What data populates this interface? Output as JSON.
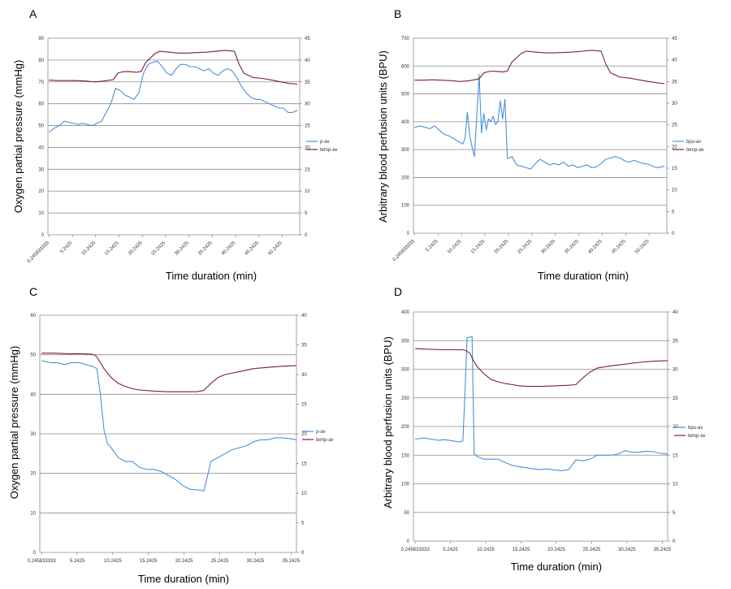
{
  "chart_data": [
    {
      "panel": "A",
      "type": "line",
      "xlabel": "Time duration (min)",
      "ylabel": "Oxygen partial pressure (mmHg)",
      "x_tick_labels": [
        "0.245833333",
        "5.2425",
        "10.2425",
        "15.2425",
        "20.2425",
        "25.2425",
        "30.2425",
        "35.2425",
        "40.2425",
        "45.2425",
        "50.2425"
      ],
      "ylim_left": [
        0,
        90
      ],
      "y_ticks_left": [
        "0",
        "10",
        "20",
        "30",
        "40",
        "50",
        "60",
        "70",
        "80",
        "90"
      ],
      "ylim_right": [
        0,
        45
      ],
      "y_ticks_right": [
        "0",
        "5",
        "10",
        "15",
        "20",
        "25",
        "30",
        "35",
        "40",
        "45"
      ],
      "grid": true,
      "legend": "right",
      "series": [
        {
          "name": "p-av",
          "axis": "left",
          "color": "#4a90d9",
          "x": [
            0.25,
            1.5,
            2.5,
            3.5,
            4.5,
            5.5,
            6.5,
            7.5,
            8.5,
            9.5,
            10.5,
            11.5,
            12.5,
            13.5,
            14.5,
            15.5,
            16.5,
            17.5,
            18.5,
            19.5,
            20.5,
            21.5,
            22.5,
            23.5,
            24.5,
            25.5,
            26.5,
            27.5,
            28.5,
            29.5,
            30.5,
            31.5,
            32.5,
            33.5,
            34.5,
            35.5,
            36.5,
            37.5,
            38.5,
            39.5,
            40.5,
            41.5,
            42.5,
            43.5,
            44.5,
            45.5,
            46.5,
            47.5,
            48.5,
            49.5,
            50.5,
            51.5,
            52.5,
            53.5
          ],
          "y": [
            47,
            49,
            50,
            52,
            51.5,
            51,
            50.5,
            51,
            50.5,
            50,
            51,
            52,
            56,
            60,
            67,
            66,
            64,
            63,
            62,
            65,
            74,
            78,
            79,
            79.5,
            77,
            74,
            73,
            76,
            78,
            78,
            77,
            77,
            76,
            75,
            76,
            74,
            73,
            75,
            76,
            75,
            72,
            68,
            65,
            63,
            62,
            62,
            61,
            60,
            59,
            58,
            58,
            56,
            56,
            57
          ]
        },
        {
          "name": "temp-av",
          "axis": "right",
          "color": "#7a1f3a",
          "x": [
            0.25,
            2,
            4,
            6,
            8,
            10,
            12,
            14,
            15,
            16,
            17,
            18,
            19,
            20,
            21,
            22,
            23,
            24,
            26,
            28,
            30,
            32,
            34,
            36,
            38,
            40,
            41,
            42,
            43,
            44,
            46,
            48,
            50,
            52,
            53.5
          ],
          "y": [
            35.4,
            35.3,
            35.3,
            35.3,
            35.2,
            35.0,
            35.2,
            35.5,
            37,
            37.3,
            37.4,
            37.3,
            37.2,
            37.4,
            39.5,
            40.5,
            41.5,
            42,
            41.8,
            41.6,
            41.6,
            41.7,
            41.8,
            42,
            42.2,
            42,
            39,
            37,
            36.5,
            36,
            35.8,
            35.4,
            35,
            34.6,
            34.5
          ]
        }
      ]
    },
    {
      "panel": "B",
      "type": "line",
      "xlabel": "Time duration (min)",
      "ylabel": "Arbitrary blood perfusion units (BPU)",
      "x_tick_labels": [
        "0.245833333",
        "5.2425",
        "10.2425",
        "15.2425",
        "20.2425",
        "25.2425",
        "30.2425",
        "35.2425",
        "40.2425",
        "45.2425",
        "50.2425"
      ],
      "ylim_left": [
        0,
        700
      ],
      "y_ticks_left": [
        "0",
        "100",
        "200",
        "300",
        "400",
        "500",
        "600",
        "700"
      ],
      "ylim_right": [
        0,
        45
      ],
      "y_ticks_right": [
        "0",
        "5",
        "10",
        "15",
        "20",
        "25",
        "30",
        "35",
        "40",
        "45"
      ],
      "grid": true,
      "legend": "right",
      "series": [
        {
          "name": "bpu-av",
          "axis": "left",
          "color": "#4a90d9",
          "x": [
            0.25,
            1.5,
            2.5,
            3.5,
            4.5,
            5.5,
            6.5,
            7.5,
            8.5,
            9.5,
            10.5,
            11,
            11.5,
            12,
            12.5,
            13,
            13.5,
            14,
            14.5,
            15,
            15.5,
            16,
            16.5,
            17,
            17.5,
            18,
            18.5,
            19,
            19.5,
            20,
            20.5,
            21,
            22,
            23,
            24,
            25,
            26,
            27,
            28,
            29,
            30,
            31,
            32,
            33,
            34,
            35,
            36,
            37,
            38,
            39,
            40,
            41,
            42,
            43,
            44,
            45,
            46,
            47,
            48,
            49,
            50,
            51,
            52,
            53.5
          ],
          "y": [
            380,
            385,
            380,
            375,
            385,
            370,
            355,
            350,
            340,
            330,
            320,
            340,
            435,
            350,
            310,
            275,
            420,
            570,
            360,
            430,
            370,
            410,
            400,
            420,
            390,
            400,
            475,
            410,
            480,
            270,
            270,
            275,
            245,
            240,
            235,
            230,
            250,
            265,
            255,
            245,
            250,
            245,
            255,
            240,
            245,
            235,
            240,
            245,
            235,
            238,
            250,
            265,
            270,
            275,
            270,
            260,
            255,
            262,
            255,
            250,
            248,
            240,
            235,
            240
          ]
        },
        {
          "name": "temp-av",
          "axis": "right",
          "color": "#7a1f3a",
          "x": [
            0.25,
            2,
            4,
            6,
            8,
            10,
            12,
            14,
            15,
            16,
            17,
            18,
            19,
            20,
            21,
            22,
            23,
            24,
            26,
            28,
            30,
            32,
            34,
            36,
            38,
            40,
            41,
            42,
            43,
            44,
            46,
            48,
            50,
            52,
            53.5
          ],
          "y": [
            35.3,
            35.3,
            35.4,
            35.3,
            35.2,
            35.0,
            35.2,
            35.6,
            37,
            37.3,
            37.4,
            37.3,
            37.2,
            37.4,
            39.5,
            40.5,
            41.5,
            42,
            41.8,
            41.6,
            41.6,
            41.7,
            41.8,
            42,
            42.2,
            42,
            39,
            37,
            36.5,
            36,
            35.8,
            35.4,
            35,
            34.7,
            34.5
          ]
        }
      ]
    },
    {
      "panel": "C",
      "type": "line",
      "xlabel": "Time duration (min)",
      "ylabel": "Oxygen partial pressure (mmHg)",
      "x_tick_labels": [
        "0.245833333",
        "5.2425",
        "10.2425",
        "15.2425",
        "20.2425",
        "25.2425",
        "30.2425",
        "35.2425"
      ],
      "ylim_left": [
        0,
        60
      ],
      "y_ticks_left": [
        "0",
        "10",
        "20",
        "30",
        "40",
        "50",
        "60"
      ],
      "ylim_right": [
        0,
        40
      ],
      "y_ticks_right": [
        "0",
        "5",
        "10",
        "15",
        "20",
        "25",
        "30",
        "35",
        "40"
      ],
      "grid": true,
      "legend": "right",
      "series": [
        {
          "name": "p-av",
          "axis": "left",
          "color": "#4a90d9",
          "x": [
            0.25,
            1.5,
            2.5,
            3.5,
            4.5,
            5.5,
            6.5,
            7.5,
            8,
            8.5,
            9,
            9.5,
            10,
            11,
            12,
            13,
            14,
            15,
            16,
            17,
            18,
            19,
            20,
            21,
            22,
            22.5,
            23,
            24,
            25,
            26,
            27,
            28,
            29,
            30,
            31,
            32,
            33,
            34,
            35,
            36
          ],
          "y": [
            48.5,
            48,
            48,
            47.5,
            48,
            48,
            47.5,
            47,
            46.5,
            40,
            31,
            27.5,
            26.5,
            24,
            23,
            23,
            21.5,
            21,
            21,
            20.5,
            19.5,
            18.5,
            17,
            16,
            15.8,
            15.8,
            15.5,
            23,
            24,
            25,
            26,
            26.5,
            27,
            28,
            28.5,
            28.5,
            29,
            29,
            28.8,
            28.5
          ]
        },
        {
          "name": "temp-av",
          "axis": "right",
          "color": "#7a1f3a",
          "x": [
            0.25,
            2,
            4,
            6,
            7.5,
            8,
            9,
            10,
            11,
            12,
            13,
            14,
            16,
            18,
            20,
            22,
            22.5,
            23,
            24,
            25,
            26,
            28,
            30,
            32,
            34,
            36
          ],
          "y": [
            33.6,
            33.6,
            33.5,
            33.5,
            33.4,
            33,
            31,
            29.5,
            28.5,
            28,
            27.6,
            27.4,
            27.2,
            27.1,
            27.1,
            27.1,
            27.2,
            27.3,
            28.5,
            29.5,
            30,
            30.5,
            31,
            31.2,
            31.4,
            31.5
          ]
        }
      ]
    },
    {
      "panel": "D",
      "type": "line",
      "xlabel": "Time duration (min)",
      "ylabel": "Arbitrary blood perfusion units (BPU)",
      "x_tick_labels": [
        "0.245833333",
        "5.2425",
        "10.2425",
        "15.2425",
        "20.2425",
        "25.2425",
        "30.2425",
        "35.2425"
      ],
      "ylim_left": [
        0,
        400
      ],
      "y_ticks_left": [
        "0",
        "50",
        "100",
        "150",
        "200",
        "250",
        "300",
        "350",
        "400"
      ],
      "ylim_right": [
        0,
        40
      ],
      "y_ticks_right": [
        "0",
        "5",
        "10",
        "15",
        "20",
        "25",
        "30",
        "35",
        "40"
      ],
      "grid": true,
      "legend": "right",
      "series": [
        {
          "name": "bpu-av",
          "axis": "left",
          "color": "#4a90d9",
          "x": [
            0.25,
            1.5,
            2.5,
            3.5,
            4.5,
            5.5,
            6.5,
            7,
            7.3,
            7.6,
            8,
            8.3,
            8.6,
            9,
            10,
            11,
            12,
            13,
            14,
            15,
            16,
            17,
            18,
            19,
            20,
            21,
            22,
            23,
            24,
            25,
            26,
            27,
            28,
            29,
            30,
            31,
            32,
            33,
            34,
            35,
            36
          ],
          "y": [
            178,
            180,
            178,
            176,
            177,
            175,
            173,
            175,
            260,
            355,
            356,
            357,
            152,
            148,
            143,
            143,
            143,
            137,
            132,
            130,
            128,
            126,
            125,
            126,
            124,
            123,
            125,
            142,
            140,
            143,
            150,
            150,
            150,
            152,
            158,
            155,
            155,
            157,
            156,
            153,
            152
          ]
        },
        {
          "name": "temp-av",
          "axis": "right",
          "color": "#7a1f3a",
          "x": [
            0.25,
            2,
            4,
            6,
            7,
            7.5,
            8,
            8.5,
            9,
            10,
            11,
            12,
            13,
            14,
            15,
            16,
            18,
            20,
            22,
            23,
            24,
            25,
            26,
            28,
            30,
            32,
            34,
            36
          ],
          "y": [
            33.6,
            33.5,
            33.4,
            33.4,
            33.4,
            33.2,
            32.8,
            31.5,
            30.5,
            29.2,
            28.2,
            27.8,
            27.5,
            27.3,
            27.1,
            27,
            27,
            27.1,
            27.2,
            27.3,
            28.5,
            29.5,
            30.2,
            30.6,
            30.9,
            31.2,
            31.4,
            31.5
          ]
        }
      ]
    }
  ]
}
